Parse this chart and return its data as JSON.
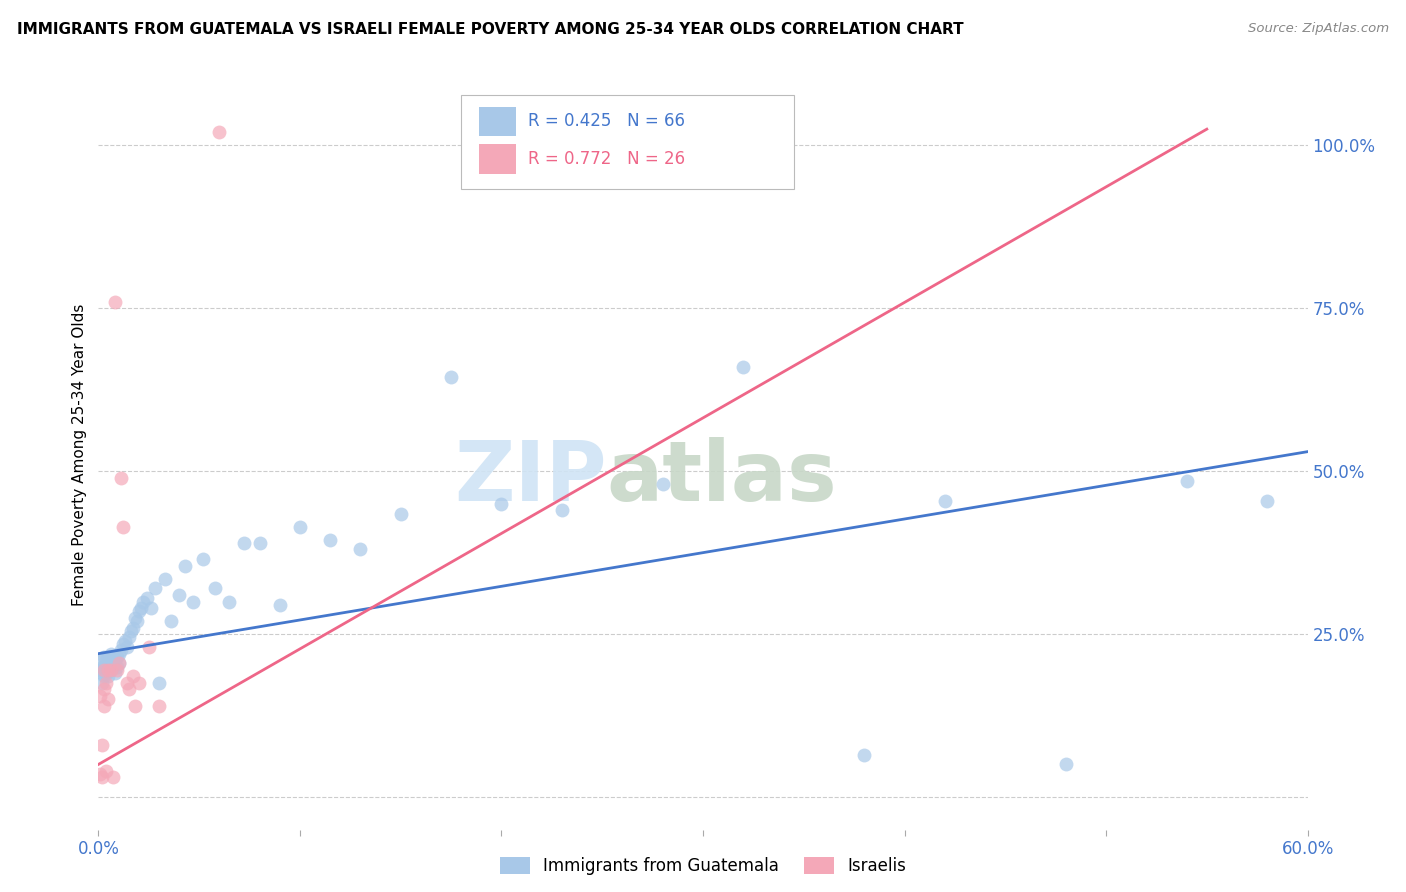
{
  "title": "IMMIGRANTS FROM GUATEMALA VS ISRAELI FEMALE POVERTY AMONG 25-34 YEAR OLDS CORRELATION CHART",
  "source": "Source: ZipAtlas.com",
  "ylabel": "Female Poverty Among 25-34 Year Olds",
  "xlim": [
    0.0,
    0.6
  ],
  "ylim": [
    -0.05,
    1.1
  ],
  "xticks": [
    0.0,
    0.1,
    0.2,
    0.3,
    0.4,
    0.5,
    0.6
  ],
  "xticklabels": [
    "0.0%",
    "",
    "",
    "",
    "",
    "",
    "60.0%"
  ],
  "yticks": [
    0.0,
    0.25,
    0.5,
    0.75,
    1.0
  ],
  "yticklabels": [
    "",
    "25.0%",
    "50.0%",
    "75.0%",
    "100.0%"
  ],
  "blue_color": "#A8C8E8",
  "pink_color": "#F4A8B8",
  "blue_line_color": "#4477CC",
  "pink_line_color": "#EE6688",
  "watermark_zip": "ZIP",
  "watermark_atlas": "atlas",
  "legend_r_blue": "R = 0.425",
  "legend_n_blue": "N = 66",
  "legend_r_pink": "R = 0.772",
  "legend_n_pink": "N = 26",
  "legend_label_blue": "Immigrants from Guatemala",
  "legend_label_pink": "Israelis",
  "blue_scatter_x": [
    0.001,
    0.001,
    0.002,
    0.002,
    0.002,
    0.003,
    0.003,
    0.003,
    0.004,
    0.004,
    0.004,
    0.005,
    0.005,
    0.005,
    0.006,
    0.006,
    0.006,
    0.007,
    0.007,
    0.008,
    0.008,
    0.009,
    0.009,
    0.01,
    0.01,
    0.011,
    0.012,
    0.013,
    0.014,
    0.015,
    0.016,
    0.017,
    0.018,
    0.019,
    0.02,
    0.021,
    0.022,
    0.024,
    0.026,
    0.028,
    0.03,
    0.033,
    0.036,
    0.04,
    0.043,
    0.047,
    0.052,
    0.058,
    0.065,
    0.072,
    0.08,
    0.09,
    0.1,
    0.115,
    0.13,
    0.15,
    0.175,
    0.2,
    0.23,
    0.28,
    0.32,
    0.38,
    0.42,
    0.48,
    0.54,
    0.58
  ],
  "blue_scatter_y": [
    0.195,
    0.21,
    0.175,
    0.19,
    0.2,
    0.185,
    0.2,
    0.215,
    0.19,
    0.2,
    0.21,
    0.185,
    0.2,
    0.215,
    0.195,
    0.205,
    0.22,
    0.2,
    0.215,
    0.19,
    0.21,
    0.2,
    0.215,
    0.205,
    0.22,
    0.225,
    0.235,
    0.24,
    0.23,
    0.245,
    0.255,
    0.26,
    0.275,
    0.27,
    0.285,
    0.29,
    0.3,
    0.305,
    0.29,
    0.32,
    0.175,
    0.335,
    0.27,
    0.31,
    0.355,
    0.3,
    0.365,
    0.32,
    0.3,
    0.39,
    0.39,
    0.295,
    0.415,
    0.395,
    0.38,
    0.435,
    0.645,
    0.45,
    0.44,
    0.48,
    0.66,
    0.065,
    0.455,
    0.05,
    0.485,
    0.455
  ],
  "pink_scatter_x": [
    0.001,
    0.001,
    0.002,
    0.002,
    0.003,
    0.003,
    0.003,
    0.004,
    0.004,
    0.005,
    0.005,
    0.006,
    0.007,
    0.008,
    0.009,
    0.01,
    0.011,
    0.012,
    0.014,
    0.015,
    0.017,
    0.018,
    0.02,
    0.025,
    0.03,
    0.06
  ],
  "pink_scatter_y": [
    0.155,
    0.035,
    0.03,
    0.08,
    0.195,
    0.165,
    0.14,
    0.04,
    0.175,
    0.195,
    0.15,
    0.195,
    0.03,
    0.76,
    0.195,
    0.205,
    0.49,
    0.415,
    0.175,
    0.165,
    0.185,
    0.14,
    0.175,
    0.23,
    0.14,
    1.02
  ],
  "blue_line_x": [
    0.0,
    0.6
  ],
  "blue_line_y": [
    0.22,
    0.53
  ],
  "pink_line_x": [
    0.0,
    0.55
  ],
  "pink_line_y": [
    0.05,
    1.025
  ]
}
